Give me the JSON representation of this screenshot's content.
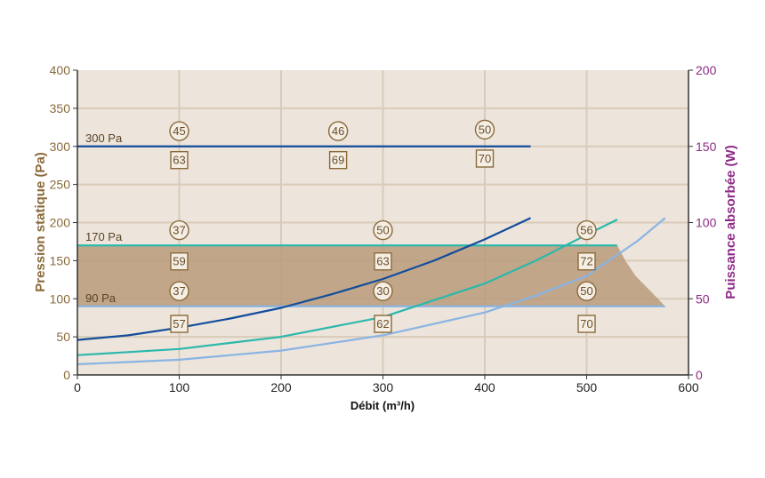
{
  "chart_data": {
    "type": "line",
    "xlabel": "Débit (m³/h)",
    "ylabel_left": "Pression statique (Pa)",
    "ylabel_right": "Puissance absorbée (W)",
    "xlim": [
      0,
      600
    ],
    "ylim_left": [
      0,
      400
    ],
    "ylim_right": [
      0,
      200
    ],
    "x_ticks": [
      0,
      100,
      200,
      300,
      400,
      500,
      600
    ],
    "y_ticks_left": [
      0,
      50,
      100,
      150,
      200,
      250,
      300,
      350,
      400
    ],
    "y_ticks_right": [
      0,
      50,
      100,
      150,
      200
    ],
    "grid": true,
    "colors": {
      "background": "#ede4db",
      "grid": "#d8cbb9",
      "axis_left": "#8a6a3a",
      "axis_right": "#8e2a86",
      "shaded_area": "#b89b7b",
      "high": "#114d9c",
      "mid": "#2bb8ab",
      "low": "#8ab4e4",
      "marker": "#8a6a3a"
    },
    "pressure_levels": [
      {
        "label": "300 Pa",
        "pressure": 300,
        "x_end": 445,
        "color": "#114d9c"
      },
      {
        "label": "170 Pa",
        "pressure": 170,
        "x_end": 530,
        "color": "#2bb8ab"
      },
      {
        "label": "90 Pa",
        "pressure": 90,
        "x_end": 577,
        "color": "#8ab4e4"
      }
    ],
    "shaded_region": {
      "upper": [
        [
          0,
          170
        ],
        [
          530,
          170
        ],
        [
          538,
          150
        ],
        [
          548,
          130
        ],
        [
          570,
          100
        ],
        [
          577,
          90
        ]
      ],
      "lower": [
        [
          0,
          90
        ],
        [
          577,
          90
        ]
      ]
    },
    "power_curves": [
      {
        "color": "#114d9c",
        "x": [
          0,
          50,
          100,
          150,
          200,
          250,
          300,
          350,
          400,
          445
        ],
        "y": [
          23,
          26,
          31,
          37,
          44,
          53,
          63,
          75,
          89,
          103
        ]
      },
      {
        "color": "#2bb8ab",
        "x": [
          0,
          100,
          200,
          300,
          400,
          450,
          500,
          530
        ],
        "y": [
          13,
          17,
          25,
          38,
          60,
          75,
          92,
          102
        ]
      },
      {
        "color": "#8ab4e4",
        "x": [
          0,
          100,
          200,
          300,
          400,
          450,
          500,
          550,
          577
        ],
        "y": [
          7,
          10,
          16,
          26,
          41,
          52,
          65,
          88,
          103
        ]
      }
    ],
    "markers": [
      {
        "shape": "circle",
        "text": "45",
        "x": 100,
        "y": 320
      },
      {
        "shape": "circle",
        "text": "46",
        "x": 256,
        "y": 320
      },
      {
        "shape": "circle",
        "text": "50",
        "x": 400,
        "y": 322
      },
      {
        "shape": "square",
        "text": "63",
        "x": 100,
        "y": 282
      },
      {
        "shape": "square",
        "text": "69",
        "x": 256,
        "y": 282
      },
      {
        "shape": "square",
        "text": "70",
        "x": 400,
        "y": 284
      },
      {
        "shape": "circle",
        "text": "37",
        "x": 100,
        "y": 190
      },
      {
        "shape": "circle",
        "text": "50",
        "x": 300,
        "y": 190
      },
      {
        "shape": "circle",
        "text": "56",
        "x": 500,
        "y": 190
      },
      {
        "shape": "square",
        "text": "59",
        "x": 100,
        "y": 149
      },
      {
        "shape": "square",
        "text": "63",
        "x": 300,
        "y": 149
      },
      {
        "shape": "square",
        "text": "72",
        "x": 500,
        "y": 149
      },
      {
        "shape": "circle",
        "text": "37",
        "x": 100,
        "y": 110
      },
      {
        "shape": "circle",
        "text": "30",
        "x": 300,
        "y": 110
      },
      {
        "shape": "circle",
        "text": "50",
        "x": 500,
        "y": 110
      },
      {
        "shape": "square",
        "text": "57",
        "x": 100,
        "y": 67
      },
      {
        "shape": "square",
        "text": "62",
        "x": 300,
        "y": 67
      },
      {
        "shape": "square",
        "text": "70",
        "x": 500,
        "y": 67
      }
    ]
  }
}
